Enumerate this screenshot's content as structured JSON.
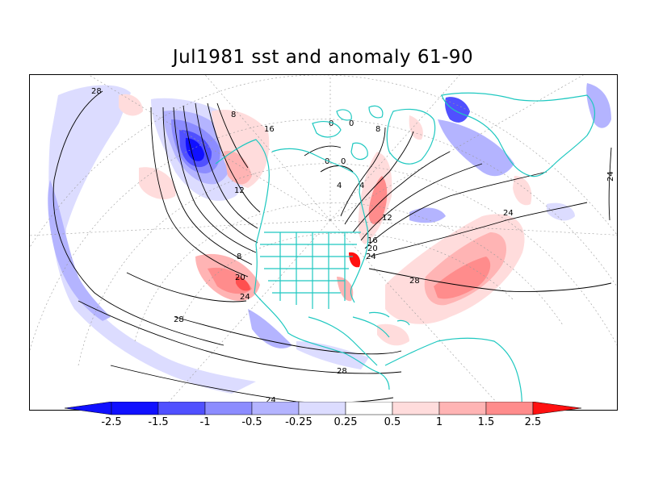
{
  "title": "Jul1981 sst and anomaly 61-90",
  "colors": {
    "coast": "#1ec8c0",
    "neg_strong": "#1010ff",
    "neg_mid": "#5050ff",
    "neg_light": "#8c8cff",
    "neg_lighter": "#b4b4ff",
    "neg_faint": "#dcdcff",
    "pos_faint": "#ffdcdc",
    "pos_light": "#ffb4b4",
    "pos_mid": "#ff8c8c",
    "pos_strong": "#ff5050",
    "pos_max": "#ff1010"
  },
  "colorbar": {
    "ticks": [
      "-2.5",
      "-1.5",
      "-1",
      "-0.5",
      "-0.25",
      "0.25",
      "0.5",
      "1",
      "1.5",
      "2.5"
    ]
  },
  "contour_labels": [
    "28",
    "8",
    "12",
    "16",
    "20",
    "24",
    "8",
    "12",
    "16",
    "20",
    "24",
    "28",
    "28",
    "28",
    "24",
    "24",
    "24",
    "0",
    "0",
    "4",
    "0",
    "0",
    "4",
    "8"
  ]
}
